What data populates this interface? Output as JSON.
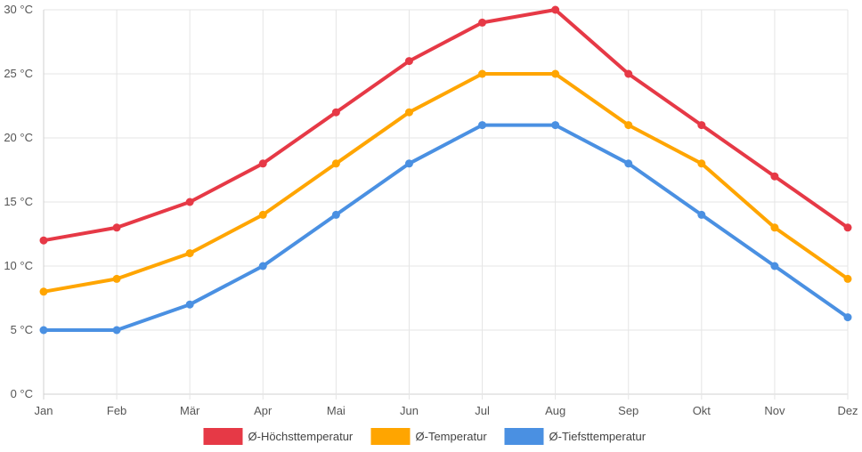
{
  "chart_data": {
    "type": "line",
    "categories": [
      "Jan",
      "Feb",
      "Mär",
      "Apr",
      "Mai",
      "Jun",
      "Jul",
      "Aug",
      "Sep",
      "Okt",
      "Nov",
      "Dez"
    ],
    "y_ticks": [
      "0 °C",
      "5 °C",
      "10 °C",
      "15 °C",
      "20 °C",
      "25 °C",
      "30 °C"
    ],
    "ylim": [
      0,
      30
    ],
    "grid": true,
    "legend_position": "bottom",
    "series": [
      {
        "name": "Ø-Höchsttemperatur",
        "color": "#e63946",
        "values": [
          12,
          13,
          15,
          18,
          22,
          26,
          29,
          30,
          25,
          21,
          17,
          13
        ]
      },
      {
        "name": "Ø-Temperatur",
        "color": "#ffa500",
        "values": [
          8,
          9,
          11,
          14,
          18,
          22,
          25,
          25,
          21,
          18,
          13,
          9
        ]
      },
      {
        "name": "Ø-Tiefsttemperatur",
        "color": "#4a90e2",
        "values": [
          5,
          5,
          7,
          10,
          14,
          18,
          21,
          21,
          18,
          14,
          10,
          6
        ]
      }
    ]
  }
}
